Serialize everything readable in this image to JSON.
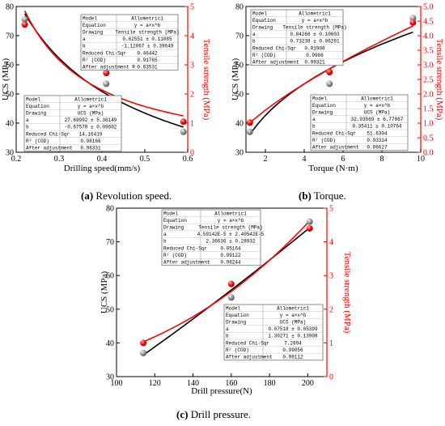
{
  "colors": {
    "ucs_series": "#000000",
    "ts_series": "#ff0000",
    "ucs_point": "#8a8a8a"
  },
  "chart_data": [
    {
      "type": "scatter",
      "caption_letter": "(a)",
      "caption_text": "Revolution speed.",
      "xlabel": "Drilling speed(mm/s)",
      "ylabel": "UCS (MPa)",
      "y2label": "Tensile strength (MPa)",
      "xlim": [
        0.2,
        0.6
      ],
      "ylim": [
        30,
        80
      ],
      "y2lim": [
        0,
        5
      ],
      "xticks": [
        "0.2",
        "0.3",
        "0.4",
        "0.5",
        "0.6"
      ],
      "yticks": [
        "30",
        "40",
        "50",
        "60",
        "70",
        "80"
      ],
      "y2ticks": [
        "0",
        "1",
        "2",
        "3",
        "4",
        "5"
      ],
      "series": [
        {
          "name": "UCS",
          "axis": "left",
          "x": [
            0.22,
            0.41,
            0.59
          ],
          "y": [
            75.6,
            53.5,
            37.0
          ]
        },
        {
          "name": "Tensile strength",
          "axis": "right",
          "x": [
            0.22,
            0.41,
            0.59
          ],
          "y": [
            4.38,
            2.72,
            1.05
          ]
        }
      ],
      "fit_tables": [
        {
          "rows": [
            [
              "Model",
              "Allometric1"
            ],
            [
              "Equation",
              "y = a×x^b"
            ],
            [
              "Drawing",
              "Tensile strength (MPa)"
            ],
            [
              "a",
              "0.62551 ± 0.11085"
            ],
            [
              "b",
              "-1.12067 ± 0.39649"
            ],
            [
              "Reduced Chi-Sqr",
              "0.46442"
            ],
            [
              "R² (COD)",
              "0.91765"
            ],
            [
              "After adjustment R",
              "0.83531"
            ]
          ]
        },
        {
          "rows": [
            [
              "Model",
              "Allometric1"
            ],
            [
              "Equation",
              "y = a×x^b"
            ],
            [
              "Drawing",
              "UCS (MPa)"
            ],
            [
              "a",
              "27.69992 ± 5.36149"
            ],
            [
              "b",
              "-0.67578 ± 0.09602"
            ],
            [
              "Reduced Chi-Sqr",
              "14.16419"
            ],
            [
              "R² (COD)",
              "0.98166"
            ],
            [
              "After adjustment",
              "0.96331"
            ]
          ]
        }
      ]
    },
    {
      "type": "scatter",
      "caption_letter": "(b)",
      "caption_text": "Torque.",
      "xlabel": "Torque (N·m)",
      "ylabel": "UCS (MPa)",
      "y2label": "Tensile strength (MPa)",
      "xlim": [
        1,
        10
      ],
      "ylim": [
        30,
        80
      ],
      "y2lim": [
        0,
        5
      ],
      "xticks": [
        "2",
        "4",
        "6",
        "8",
        "10"
      ],
      "yticks": [
        "30",
        "40",
        "50",
        "60",
        "70",
        "80"
      ],
      "y2ticks": [
        "0.0",
        "0.5",
        "1.0",
        "1.5",
        "2.0",
        "2.5",
        "3.0",
        "3.5",
        "4.0",
        "4.5",
        "5.0"
      ],
      "series": [
        {
          "name": "UCS",
          "axis": "left",
          "x": [
            1.2,
            5.3,
            9.6
          ],
          "y": [
            37.0,
            53.5,
            76.0
          ]
        },
        {
          "name": "Tensile strength",
          "axis": "right",
          "x": [
            1.2,
            5.3,
            9.6
          ],
          "y": [
            1.02,
            2.75,
            4.45
          ]
        }
      ],
      "fit_tables": [
        {
          "rows": [
            [
              "Model",
              "Allometric1"
            ],
            [
              "Equation",
              "y = a×x^b"
            ],
            [
              "Drawing",
              "Tensile strength (MPa)"
            ],
            [
              "a",
              "0.84266 ± 0.10603"
            ],
            [
              "b",
              "0.73238 ± 0.06291"
            ],
            [
              "Reduced Chi-Sqr",
              "0.01908"
            ],
            [
              "R² (COD)",
              "0.9966"
            ],
            [
              "After adjustment",
              "0.99321"
            ]
          ]
        },
        {
          "rows": [
            [
              "Model",
              "Allometric1"
            ],
            [
              "Equation",
              "y = a×x^b"
            ],
            [
              "Drawing",
              "UCS (MPa)"
            ],
            [
              "a",
              "32.93569 ± 6.77867"
            ],
            [
              "b",
              "0.35411 ± 0.10764"
            ],
            [
              "Reduced Chi-Sqr",
              "51.6304"
            ],
            [
              "R² (COD)",
              "0.93314"
            ],
            [
              "After adjustment",
              "0.86627"
            ]
          ]
        }
      ]
    },
    {
      "type": "scatter",
      "caption_letter": "(c)",
      "caption_text": "Drill pressure.",
      "xlabel": "Drill pressure(N)",
      "ylabel": "UCS (MPa)",
      "y2label": "Tensile strength (MPa)",
      "xlim": [
        100,
        210
      ],
      "ylim": [
        30,
        80
      ],
      "y2lim": [
        0,
        5
      ],
      "xticks": [
        "100",
        "120",
        "140",
        "160",
        "180",
        "200"
      ],
      "yticks": [
        "30",
        "40",
        "50",
        "60",
        "70",
        "80"
      ],
      "y2ticks": [
        "0",
        "1",
        "2",
        "3",
        "4",
        "5"
      ],
      "series": [
        {
          "name": "UCS",
          "axis": "left",
          "x": [
            114,
            160,
            201
          ],
          "y": [
            37.0,
            53.5,
            76.0
          ]
        },
        {
          "name": "Tensile strength",
          "axis": "right",
          "x": [
            114,
            160,
            201
          ],
          "y": [
            1.0,
            2.75,
            4.4
          ]
        }
      ],
      "fit_tables": [
        {
          "rows": [
            [
              "Model",
              "Allometric1"
            ],
            [
              "Equation",
              "y = a×x^b"
            ],
            [
              "Drawing",
              "Tensile strength (MPa)"
            ],
            [
              "a",
              "4.59142E-5 ± 2.40542E-5"
            ],
            [
              "b",
              "2.36636 ± 0.28932"
            ],
            [
              "Reduced Chi-Sqr",
              "0.05164"
            ],
            [
              "R² (COD)",
              "0.99122"
            ],
            [
              "After adjustment",
              "0.98244"
            ]
          ]
        },
        {
          "rows": [
            [
              "Model",
              "Allometric1"
            ],
            [
              "Equation",
              "y = a×x^b"
            ],
            [
              "Drawing",
              "UCS (MPa)"
            ],
            [
              "a",
              "0.07518 ± 0.05399"
            ],
            [
              "b",
              "1.30271 ± 0.13908"
            ],
            [
              "Reduced Chi-Sqr",
              "7.2894"
            ],
            [
              "R² (COD)",
              "0.99056"
            ],
            [
              "After adjustment",
              "0.98112"
            ]
          ]
        }
      ]
    }
  ]
}
